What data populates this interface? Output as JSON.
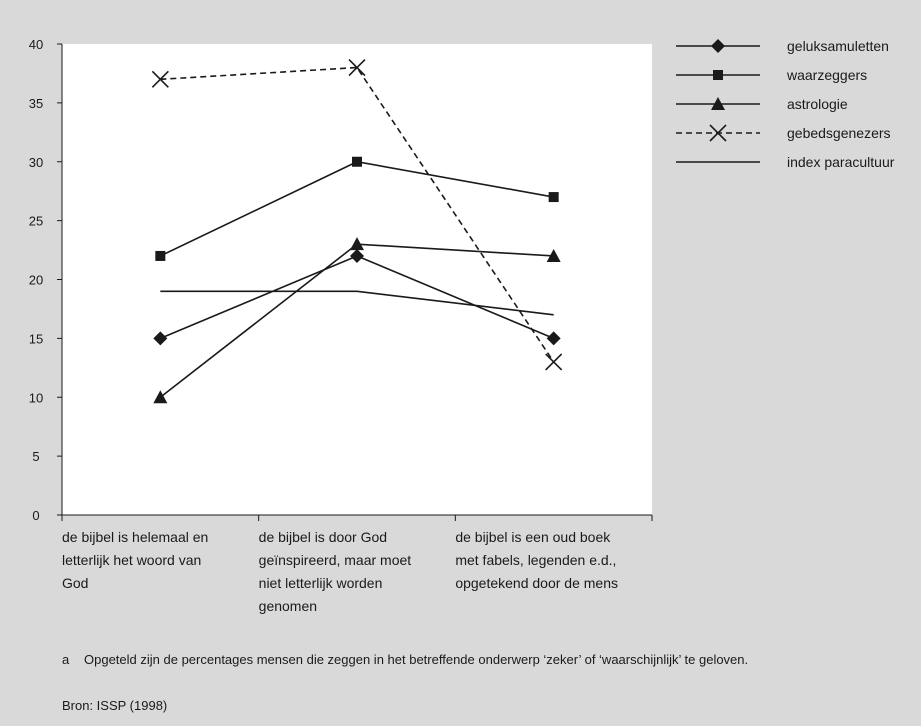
{
  "chart_data": {
    "type": "line",
    "categories": [
      [
        "de bijbel is helemaal en",
        "letterlijk het woord van",
        "God"
      ],
      [
        "de bijbel is door God",
        "geïnspireerd, maar moet",
        "niet letterlijk worden",
        "genomen"
      ],
      [
        "de bijbel is een oud boek",
        "met fabels, legenden e.d.,",
        "opgetekend door de mens"
      ]
    ],
    "yticks": [
      0,
      5,
      10,
      15,
      20,
      25,
      30,
      35,
      40
    ],
    "ylim": [
      0,
      40
    ],
    "grid": false,
    "legend_position": "right",
    "series": [
      {
        "name": "geluksamuletten",
        "values": [
          15,
          22,
          15
        ],
        "marker": "diamond",
        "dashed": false
      },
      {
        "name": "waarzeggers",
        "values": [
          22,
          30,
          27
        ],
        "marker": "square",
        "dashed": false
      },
      {
        "name": "astrologie",
        "values": [
          10,
          23,
          22
        ],
        "marker": "triangle",
        "dashed": false
      },
      {
        "name": "gebedsgenezers",
        "values": [
          37,
          38,
          13
        ],
        "marker": "x",
        "dashed": true
      },
      {
        "name": "index paracultuur",
        "values": [
          19,
          19,
          17
        ],
        "marker": "none",
        "dashed": false
      }
    ],
    "colors": {
      "line": "#1a1a1a",
      "background": "#d9d9d9",
      "plot_background": "#ffffff"
    }
  },
  "footnote": {
    "marker": "a",
    "text": "Opgeteld zijn de percentages mensen die zeggen in het betreffende onderwerp ‘zeker’ of ‘waarschijnlijk’ te geloven."
  },
  "source": "Bron: ISSP (1998)"
}
